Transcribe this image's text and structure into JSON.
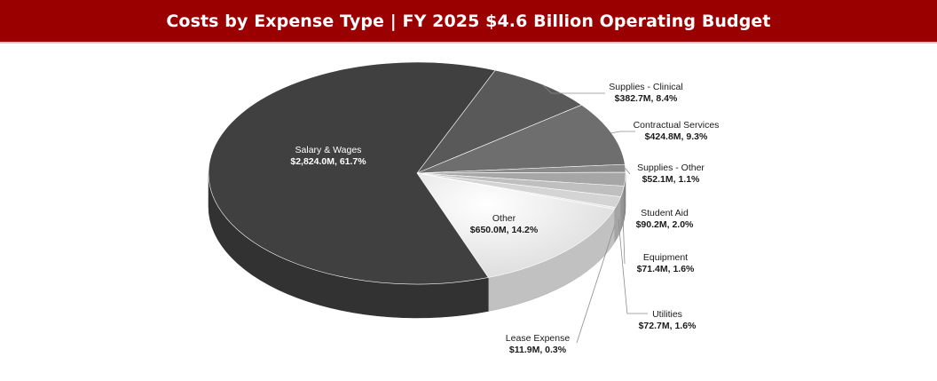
{
  "header": {
    "title": "Costs by Expense Type | FY 2025 $4.6 Billion Operating Budget",
    "background_color": "#9a0000"
  },
  "chart_data": {
    "type": "pie",
    "style": "3d",
    "title": "Costs by Expense Type | FY 2025 $4.6 Billion Operating Budget",
    "legend": "none",
    "slices": [
      {
        "label": "Supplies - Clinical",
        "value": 382.7,
        "value_label": "$382.7M, 8.4%",
        "percent": 8.4,
        "color": "#595959"
      },
      {
        "label": "Contractual Services",
        "value": 424.8,
        "value_label": "$424.8M, 9.3%",
        "percent": 9.3,
        "color": "#6e6e6e"
      },
      {
        "label": "Supplies - Other",
        "value": 52.1,
        "value_label": "$52.1M, 1.1%",
        "percent": 1.1,
        "color": "#8c8c8c"
      },
      {
        "label": "Student Aid",
        "value": 90.2,
        "value_label": "$90.2M, 2.0%",
        "percent": 2.0,
        "color": "#a6a6a6"
      },
      {
        "label": "Equipment",
        "value": 71.4,
        "value_label": "$71.4M, 1.6%",
        "percent": 1.6,
        "color": "#bfbfbf"
      },
      {
        "label": "Utilities",
        "value": 72.7,
        "value_label": "$72.7M, 1.6%",
        "percent": 1.6,
        "color": "#d4d4d4"
      },
      {
        "label": "Lease Expense",
        "value": 11.9,
        "value_label": "$11.9M, 0.3%",
        "percent": 0.3,
        "color": "#e6e6e6"
      },
      {
        "label": "Other",
        "value": 650.0,
        "value_label": "$650.0M, 14.2%",
        "percent": 14.2,
        "color": "#f7f7f7"
      },
      {
        "label": "Salary & Wages",
        "value": 2824.0,
        "value_label": "$2,824.0M, 61.7%",
        "percent": 61.7,
        "color": "#404040"
      }
    ]
  }
}
